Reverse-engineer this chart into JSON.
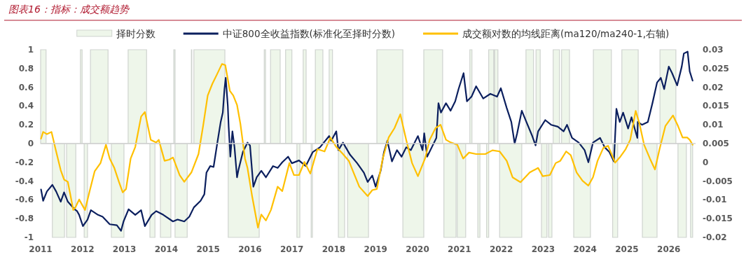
{
  "chart_data": {
    "type": "line",
    "title": "图表16：指标：成交额趋势",
    "legend": "top",
    "xlim": [
      2011,
      2026.64
    ],
    "xticks": [
      2011,
      2012,
      2013,
      2014,
      2015,
      2016,
      2017,
      2018,
      2019,
      2020,
      2021,
      2022,
      2023,
      2024,
      2025,
      2026
    ],
    "ylim": [
      -1,
      1
    ],
    "yticks": [
      -1,
      -0.8,
      -0.6,
      -0.4,
      -0.2,
      0,
      0.2,
      0.4,
      0.6,
      0.8,
      1
    ],
    "y2lim": [
      -0.02,
      0.03
    ],
    "y2ticks": [
      -0.02,
      -0.015,
      -0.01,
      -0.005,
      0,
      0.005,
      0.01,
      0.015,
      0.02,
      0.025,
      0.03
    ],
    "series": [
      {
        "name": "择时分数",
        "type": "area",
        "color": "#eef6ea",
        "x": [
          2011.0,
          2011.0,
          2011.13,
          2011.13,
          2011.28,
          2011.28,
          2011.57,
          2011.57,
          2011.62,
          2011.62,
          2011.84,
          2011.84,
          2011.95,
          2011.95,
          2011.99,
          2011.99,
          2012.04,
          2012.04,
          2012.12,
          2012.12,
          2012.19,
          2012.19,
          2012.61,
          2012.61,
          2012.69,
          2012.69,
          2012.99,
          2012.99,
          2013.09,
          2013.09,
          2013.53,
          2013.53,
          2013.61,
          2013.61,
          2013.73,
          2013.73,
          2013.86,
          2013.86,
          2014.11,
          2014.11,
          2014.18,
          2014.18,
          2014.21,
          2014.21,
          2014.5,
          2014.5,
          2014.6,
          2014.6,
          2014.61,
          2014.61,
          2014.66,
          2014.66,
          2015.4,
          2015.4,
          2015.48,
          2015.48,
          2016.22,
          2016.22,
          2016.34,
          2016.34,
          2016.37,
          2016.37,
          2016.49,
          2016.49,
          2016.72,
          2016.72,
          2016.85,
          2016.85,
          2017.0,
          2017.0,
          2017.12,
          2017.12,
          2017.19,
          2017.19,
          2017.27,
          2017.27,
          2017.34,
          2017.34,
          2017.46,
          2017.46,
          2017.49,
          2017.49,
          2017.56,
          2017.56,
          2017.74,
          2017.74,
          2017.89,
          2017.89,
          2017.97,
          2017.97,
          2018.11,
          2018.11,
          2018.26,
          2018.26,
          2018.33,
          2018.33,
          2018.83,
          2018.83,
          2019.03,
          2019.03,
          2019.65,
          2019.65,
          2020.15,
          2020.15,
          2020.6,
          2020.6,
          2020.63,
          2020.63,
          2020.92,
          2020.92,
          2020.95,
          2020.95,
          2021.15,
          2021.15,
          2021.25,
          2021.25,
          2021.3,
          2021.3,
          2021.44,
          2021.44,
          2021.49,
          2021.49,
          2021.65,
          2021.65,
          2021.7,
          2021.7,
          2021.82,
          2021.82,
          2021.84,
          2021.84,
          2021.92,
          2021.92,
          2021.96,
          2021.96,
          2022.49,
          2022.49,
          2022.59,
          2022.59,
          2022.77,
          2022.77,
          2022.83,
          2022.83,
          2022.93,
          2022.93,
          2022.96,
          2022.96,
          2023.09,
          2023.09,
          2023.13,
          2023.13,
          2023.21,
          2023.21,
          2023.24,
          2023.24,
          2023.39,
          2023.39,
          2023.44,
          2023.44,
          2023.63,
          2023.63,
          2023.73,
          2023.73,
          2024.13,
          2024.13,
          2024.2,
          2024.2,
          2024.63,
          2024.63,
          2024.66,
          2024.66,
          2024.78,
          2024.78,
          2024.88,
          2024.88,
          2025.27,
          2025.27,
          2025.37,
          2025.37,
          2025.72,
          2025.72,
          2025.79,
          2025.79,
          2026.17,
          2026.17,
          2026.22,
          2026.22,
          2026.42,
          2026.42,
          2026.52,
          2026.52,
          2026.57,
          2026.57
        ],
        "values": [
          0,
          1,
          1,
          0,
          0,
          -1,
          -1,
          0,
          0,
          -1,
          -1,
          0,
          0,
          1,
          1,
          0,
          0,
          -1,
          -1,
          0,
          0,
          1,
          1,
          0,
          0,
          -1,
          -1,
          0,
          0,
          1,
          1,
          0,
          0,
          -1,
          -1,
          0,
          0,
          -1,
          -1,
          0,
          0,
          1,
          1,
          -1,
          -1,
          0,
          0,
          1,
          1,
          0,
          0,
          1,
          1,
          0,
          0,
          -1,
          -1,
          0,
          0,
          1,
          1,
          0,
          0,
          1,
          1,
          0,
          0,
          1,
          1,
          0,
          0,
          -1,
          -1,
          0,
          0,
          1,
          1,
          0,
          0,
          -1,
          -1,
          0,
          0,
          1,
          1,
          0,
          0,
          1,
          1,
          0,
          0,
          -1,
          -1,
          0,
          0,
          -1,
          -1,
          0,
          0,
          1,
          1,
          -1,
          -1,
          1,
          1,
          0,
          0,
          -1,
          -1,
          0,
          0,
          -1,
          -1,
          0,
          0,
          1,
          1,
          0,
          0,
          -1,
          -1,
          0,
          0,
          -1,
          -1,
          1,
          1,
          0,
          0,
          1,
          1,
          0,
          0,
          -1,
          -1,
          0,
          0,
          1,
          1,
          0,
          0,
          1,
          1,
          0,
          0,
          -1,
          -1,
          0,
          0,
          -1,
          -1,
          0,
          0,
          1,
          1,
          0,
          0,
          1,
          1,
          0,
          0,
          -1,
          -1,
          0,
          0,
          1,
          1,
          0,
          0,
          -1,
          -1,
          0,
          0,
          1,
          1,
          0,
          0,
          -1,
          -1,
          0,
          0,
          1,
          1,
          0,
          0,
          -1,
          -1,
          0,
          0,
          -1,
          -1,
          0
        ]
      },
      {
        "name": "中证800全收益指数(标准化至择时分数)",
        "color": "#0b1f5e",
        "x": [
          2011.01,
          2011.06,
          2011.15,
          2011.28,
          2011.37,
          2011.48,
          2011.56,
          2011.65,
          2011.81,
          2011.87,
          2011.92,
          2012.01,
          2012.12,
          2012.2,
          2012.37,
          2012.48,
          2012.65,
          2012.82,
          2012.92,
          2012.98,
          2013.1,
          2013.26,
          2013.4,
          2013.49,
          2013.65,
          2013.76,
          2013.93,
          2014.16,
          2014.27,
          2014.43,
          2014.55,
          2014.66,
          2014.82,
          2014.91,
          2014.96,
          2015.05,
          2015.13,
          2015.21,
          2015.3,
          2015.35,
          2015.39,
          2015.42,
          2015.47,
          2015.49,
          2015.53,
          2015.58,
          2015.63,
          2015.69,
          2015.72,
          2015.83,
          2015.94,
          2016.0,
          2016.08,
          2016.16,
          2016.27,
          2016.38,
          2016.55,
          2016.66,
          2016.77,
          2016.91,
          2017.0,
          2017.17,
          2017.33,
          2017.5,
          2017.67,
          2017.89,
          2017.94,
          2018.06,
          2018.11,
          2018.22,
          2018.39,
          2018.56,
          2018.72,
          2018.81,
          2018.92,
          2019.0,
          2019.12,
          2019.2,
          2019.28,
          2019.39,
          2019.51,
          2019.62,
          2019.73,
          2019.84,
          2020.01,
          2020.12,
          2020.16,
          2020.23,
          2020.34,
          2020.45,
          2020.5,
          2020.56,
          2020.68,
          2020.79,
          2020.9,
          2020.98,
          2021.1,
          2021.18,
          2021.29,
          2021.4,
          2021.57,
          2021.74,
          2021.9,
          2021.99,
          2022.13,
          2022.24,
          2022.32,
          2022.38,
          2022.49,
          2022.6,
          2022.74,
          2022.82,
          2022.88,
          2023.05,
          2023.19,
          2023.35,
          2023.49,
          2023.57,
          2023.69,
          2023.85,
          2023.99,
          2024.08,
          2024.19,
          2024.36,
          2024.47,
          2024.58,
          2024.69,
          2024.75,
          2024.83,
          2024.91,
          2025.03,
          2025.11,
          2025.25,
          2025.26,
          2025.36,
          2025.5,
          2025.61,
          2025.72,
          2025.81,
          2025.89,
          2026.0,
          2026.08,
          2026.2,
          2026.31,
          2026.36,
          2026.45,
          2026.5,
          2026.57
        ],
        "values": [
          -0.49,
          -0.61,
          -0.51,
          -0.44,
          -0.51,
          -0.62,
          -0.52,
          -0.62,
          -0.7,
          -0.72,
          -0.76,
          -0.88,
          -0.81,
          -0.71,
          -0.76,
          -0.78,
          -0.86,
          -0.87,
          -0.93,
          -0.83,
          -0.7,
          -0.76,
          -0.71,
          -0.88,
          -0.76,
          -0.72,
          -0.76,
          -0.83,
          -0.81,
          -0.83,
          -0.78,
          -0.68,
          -0.61,
          -0.54,
          -0.31,
          -0.24,
          -0.25,
          -0.02,
          0.23,
          0.33,
          0.58,
          0.7,
          0.4,
          0.18,
          -0.14,
          0.13,
          -0.04,
          -0.36,
          -0.29,
          -0.09,
          0.01,
          -0.02,
          -0.46,
          -0.36,
          -0.29,
          -0.36,
          -0.24,
          -0.26,
          -0.2,
          -0.14,
          -0.21,
          -0.18,
          -0.24,
          -0.09,
          -0.04,
          0.08,
          0.03,
          0.13,
          -0.07,
          0.01,
          -0.12,
          -0.21,
          -0.31,
          -0.41,
          -0.34,
          -0.46,
          -0.29,
          -0.09,
          0.03,
          -0.19,
          -0.07,
          -0.14,
          -0.04,
          -0.07,
          0.08,
          -0.07,
          0.11,
          -0.14,
          -0.04,
          0.06,
          0.43,
          0.33,
          0.43,
          0.35,
          0.45,
          0.58,
          0.75,
          0.45,
          0.5,
          0.61,
          0.48,
          0.53,
          0.5,
          0.59,
          0.38,
          0.23,
          0.0,
          0.11,
          0.35,
          0.23,
          0.08,
          -0.02,
          0.13,
          0.25,
          0.2,
          0.18,
          0.13,
          0.2,
          0.06,
          0.01,
          -0.07,
          -0.2,
          0.01,
          0.06,
          -0.04,
          -0.09,
          -0.19,
          0.37,
          0.23,
          0.33,
          0.16,
          0.28,
          0.06,
          0.23,
          0.2,
          0.23,
          0.43,
          0.65,
          0.7,
          0.58,
          0.82,
          0.75,
          0.62,
          0.82,
          0.96,
          0.98,
          0.77,
          0.67
        ]
      },
      {
        "name": "成交额对数的均线距离(ma120/ma240-1,右轴)",
        "axis": "y2",
        "color": "#ffc000",
        "x": [
          2011.01,
          2011.06,
          2011.15,
          2011.26,
          2011.37,
          2011.48,
          2011.56,
          2011.65,
          2011.78,
          2011.84,
          2011.92,
          2012.06,
          2012.17,
          2012.29,
          2012.43,
          2012.56,
          2012.65,
          2012.76,
          2012.87,
          2012.96,
          2013.04,
          2013.15,
          2013.26,
          2013.4,
          2013.49,
          2013.63,
          2013.76,
          2013.82,
          2013.96,
          2014.07,
          2014.16,
          2014.32,
          2014.43,
          2014.6,
          2014.77,
          2014.88,
          2014.99,
          2015.1,
          2015.21,
          2015.33,
          2015.41,
          2015.52,
          2015.6,
          2015.69,
          2015.77,
          2015.88,
          2015.94,
          2016.05,
          2016.19,
          2016.27,
          2016.38,
          2016.5,
          2016.66,
          2016.77,
          2016.94,
          2017.05,
          2017.17,
          2017.3,
          2017.44,
          2017.61,
          2017.78,
          2017.92,
          2018.06,
          2018.22,
          2018.36,
          2018.45,
          2018.61,
          2018.81,
          2018.92,
          2019.03,
          2019.17,
          2019.31,
          2019.45,
          2019.59,
          2019.73,
          2019.87,
          2020.01,
          2020.18,
          2020.29,
          2020.43,
          2020.55,
          2020.68,
          2020.79,
          2020.95,
          2021.09,
          2021.23,
          2021.4,
          2021.62,
          2021.79,
          2021.96,
          2022.13,
          2022.27,
          2022.46,
          2022.68,
          2022.88,
          2022.99,
          2023.16,
          2023.3,
          2023.41,
          2023.55,
          2023.66,
          2023.8,
          2023.94,
          2024.08,
          2024.19,
          2024.3,
          2024.44,
          2024.55,
          2024.72,
          2024.83,
          2024.97,
          2025.08,
          2025.21,
          2025.3,
          2025.41,
          2025.55,
          2025.67,
          2025.78,
          2025.92,
          2026.1,
          2026.22,
          2026.33,
          2026.44,
          2026.5,
          2026.57
        ],
        "values": [
          0.0063,
          0.0081,
          0.0075,
          0.0081,
          0.0029,
          -0.0021,
          -0.0046,
          -0.0052,
          -0.0127,
          -0.0118,
          -0.0099,
          -0.0127,
          -0.0077,
          -0.0024,
          -0.0002,
          0.0047,
          0.001,
          -0.0015,
          -0.0052,
          -0.008,
          -0.0071,
          0.001,
          0.0041,
          0.0122,
          0.0134,
          0.006,
          0.0053,
          0.006,
          0.0004,
          0.0007,
          0.0013,
          -0.0034,
          -0.0052,
          -0.0027,
          0.0022,
          0.0097,
          0.0178,
          0.0209,
          0.0234,
          0.0262,
          0.0259,
          0.019,
          0.0178,
          0.0153,
          0.0103,
          0.001,
          -0.0015,
          -0.009,
          -0.0174,
          -0.0139,
          -0.0155,
          -0.0127,
          -0.0065,
          -0.0077,
          -0.0002,
          -0.0034,
          -0.0034,
          0.0001,
          -0.003,
          0.0035,
          0.0029,
          0.0066,
          0.0041,
          0.0022,
          0.0004,
          -0.0021,
          -0.0065,
          -0.009,
          -0.0074,
          -0.0071,
          0.001,
          0.0066,
          0.0091,
          0.0128,
          0.006,
          -0.0002,
          -0.0037,
          0.001,
          0.006,
          0.0091,
          0.01,
          0.006,
          0.0053,
          0.0047,
          0.001,
          0.0026,
          0.0022,
          0.0022,
          0.0032,
          0.0029,
          0.0004,
          -0.004,
          -0.0053,
          -0.0027,
          -0.0015,
          -0.0037,
          -0.0034,
          -0.0002,
          0.0004,
          0.0029,
          0.0019,
          -0.0027,
          -0.0049,
          -0.0062,
          -0.004,
          0.0004,
          0.0039,
          0.0044,
          -0.0001,
          0.0013,
          0.0035,
          0.006,
          0.0137,
          0.0103,
          0.0047,
          0.001,
          -0.0019,
          0.0035,
          0.0097,
          0.0125,
          0.0097,
          0.0066,
          0.0066,
          0.006,
          0.0047
        ]
      }
    ]
  }
}
